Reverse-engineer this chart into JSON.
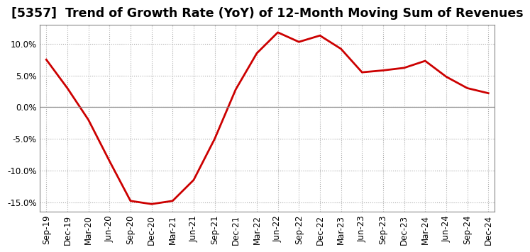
{
  "title": "[5357]  Trend of Growth Rate (YoY) of 12-Month Moving Sum of Revenues",
  "x_labels": [
    "Sep-19",
    "Dec-19",
    "Mar-20",
    "Jun-20",
    "Sep-20",
    "Dec-20",
    "Mar-21",
    "Jun-21",
    "Sep-21",
    "Dec-21",
    "Mar-22",
    "Jun-22",
    "Sep-22",
    "Dec-22",
    "Mar-23",
    "Jun-23",
    "Sep-23",
    "Dec-23",
    "Mar-24",
    "Jun-24",
    "Sep-24",
    "Dec-24"
  ],
  "y_values": [
    7.5,
    3.0,
    -2.0,
    -8.5,
    -14.8,
    -15.3,
    -14.8,
    -11.5,
    -5.0,
    2.8,
    8.5,
    11.8,
    10.3,
    11.3,
    9.2,
    5.5,
    5.8,
    6.2,
    7.3,
    4.8,
    3.0,
    2.2
  ],
  "line_color": "#cc0000",
  "line_width": 2.0,
  "background_color": "#ffffff",
  "plot_bg_color": "#ffffff",
  "grid_color": "#aaaaaa",
  "ylim": [
    -16.5,
    13.0
  ],
  "yticks": [
    -15.0,
    -10.0,
    -5.0,
    0.0,
    5.0,
    10.0
  ],
  "title_fontsize": 12.5,
  "tick_fontsize": 8.5,
  "zero_line_color": "#888888"
}
